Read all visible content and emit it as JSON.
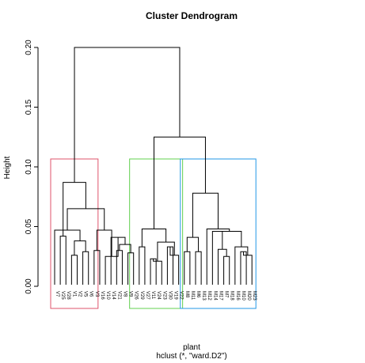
{
  "chart_data": {
    "type": "dendrogram",
    "title": "Cluster Dendrogram",
    "ylabel": "Height",
    "xlabel": "plant",
    "sublabel": "hclust (*, \"ward.D2\")",
    "ylim": [
      0,
      0.2
    ],
    "yticks": [
      "0.00",
      "0.05",
      "0.10",
      "0.15",
      "0.20"
    ],
    "yticks_values": [
      0,
      0.05,
      0.1,
      0.15,
      0.2
    ],
    "leaves": [
      "V7",
      "V25",
      "V28",
      "V1",
      "V2",
      "V5",
      "V6",
      "V3",
      "V16",
      "V10",
      "V14",
      "V21",
      "V8",
      "V9",
      "V26",
      "V29",
      "V27",
      "V11",
      "V24",
      "V23",
      "V30",
      "V19",
      "V22",
      "M8",
      "M11",
      "M6",
      "M13",
      "M12",
      "M14",
      "M17",
      "M7",
      "M18",
      "M16",
      "M10",
      "M20",
      "M23"
    ],
    "merges": [
      {
        "id": "a1",
        "children": [
          "V25",
          "V28"
        ],
        "height": 0.042
      },
      {
        "id": "a2",
        "children": [
          "V1",
          "V2"
        ],
        "height": 0.026
      },
      {
        "id": "a3",
        "children": [
          "V5",
          "V6"
        ],
        "height": 0.029
      },
      {
        "id": "a4",
        "children": [
          "a2",
          "a3"
        ],
        "height": 0.038
      },
      {
        "id": "a5",
        "children": [
          "V7",
          "a4"
        ],
        "height": 0.047
      },
      {
        "id": "a6",
        "children": [
          "V3",
          "V16"
        ],
        "height": 0.03
      },
      {
        "id": "a7",
        "children": [
          "V21",
          "V8"
        ],
        "height": 0.03
      },
      {
        "id": "a8",
        "children": [
          "V9",
          "V26"
        ],
        "height": 0.028
      },
      {
        "id": "a9",
        "children": [
          "a7",
          "a8"
        ],
        "height": 0.035
      },
      {
        "id": "a10",
        "children": [
          "V14",
          "a9"
        ],
        "height": 0.041
      },
      {
        "id": "a11",
        "children": [
          "V10",
          "a10"
        ],
        "height": 0.025
      },
      {
        "id": "a12",
        "children": [
          "a6",
          "a11"
        ],
        "height": 0.047
      },
      {
        "id": "a13",
        "children": [
          "a5",
          "a12"
        ],
        "height": 0.065
      },
      {
        "id": "a14",
        "children": [
          "a1",
          "a13"
        ],
        "height": 0.087
      },
      {
        "id": "b1",
        "children": [
          "V29",
          "V27"
        ],
        "height": 0.033
      },
      {
        "id": "b2",
        "children": [
          "V11",
          "V24"
        ],
        "height": 0.023
      },
      {
        "id": "b3",
        "children": [
          "b2",
          "V23"
        ],
        "height": 0.021
      },
      {
        "id": "b4",
        "children": [
          "V30",
          "V19"
        ],
        "height": 0.033
      },
      {
        "id": "b5",
        "children": [
          "b4",
          "V22"
        ],
        "height": 0.026
      },
      {
        "id": "b6",
        "children": [
          "b3",
          "b5"
        ],
        "height": 0.037
      },
      {
        "id": "b7",
        "children": [
          "b1",
          "b6"
        ],
        "height": 0.048
      },
      {
        "id": "c1",
        "children": [
          "M8",
          "M11"
        ],
        "height": 0.029
      },
      {
        "id": "c2",
        "children": [
          "M6",
          "M13"
        ],
        "height": 0.029
      },
      {
        "id": "c3",
        "children": [
          "c1",
          "c2"
        ],
        "height": 0.041
      },
      {
        "id": "c4",
        "children": [
          "M7",
          "M18"
        ],
        "height": 0.025
      },
      {
        "id": "c5",
        "children": [
          "M17",
          "c4"
        ],
        "height": 0.031
      },
      {
        "id": "c6",
        "children": [
          "M14",
          "c5"
        ],
        "height": 0.046
      },
      {
        "id": "c7",
        "children": [
          "M10",
          "M20"
        ],
        "height": 0.029
      },
      {
        "id": "c8",
        "children": [
          "c7",
          "M23"
        ],
        "height": 0.026
      },
      {
        "id": "c9",
        "children": [
          "M16",
          "c8"
        ],
        "height": 0.033
      },
      {
        "id": "c10",
        "children": [
          "c6",
          "c9"
        ],
        "height": 0.046
      },
      {
        "id": "c11",
        "children": [
          "M12",
          "c10"
        ],
        "height": 0.048
      },
      {
        "id": "c12",
        "children": [
          "c3",
          "c11"
        ],
        "height": 0.078
      },
      {
        "id": "d1",
        "children": [
          "b7",
          "c12"
        ],
        "height": 0.125
      },
      {
        "id": "root",
        "children": [
          "a14",
          "d1"
        ],
        "height": 0.2
      }
    ],
    "cluster_boxes": [
      {
        "first": "V7",
        "last": "V3",
        "color": "#df536b"
      },
      {
        "first": "V26",
        "last": "V22",
        "color": "#61d04f"
      },
      {
        "first": "M8",
        "last": "M23",
        "color": "#2297e6"
      }
    ]
  }
}
